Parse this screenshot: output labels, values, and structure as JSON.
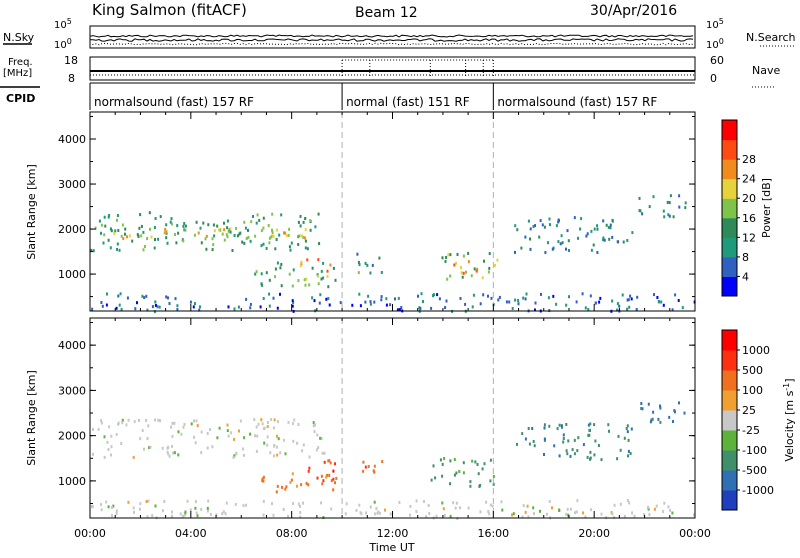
{
  "header": {
    "station": "King Salmon (fitACF)",
    "beam": "Beam 12",
    "date": "30/Apr/2016"
  },
  "aux_panels": {
    "nsky_label": "N.Sky",
    "nsky_ticks": [
      "10^5",
      "10^0"
    ],
    "nsearch_label": "N.Search",
    "nsearch_ticks": [
      "10^5",
      "10^0"
    ],
    "freq_label": [
      "Freq.",
      "[MHz]"
    ],
    "freq_ticks": [
      "18",
      "8"
    ],
    "nave_label": "Nave",
    "nave_ticks": [
      "60",
      "0"
    ],
    "cpid_label": "CPID",
    "cpid_segments": [
      {
        "label": "normalsound (fast) 157 RF",
        "start_h": 0,
        "end_h": 10
      },
      {
        "label": "normal (fast) 151 RF",
        "start_h": 10,
        "end_h": 16
      },
      {
        "label": "normalsound (fast) 157 RF",
        "start_h": 16,
        "end_h": 24
      }
    ]
  },
  "chart_data": [
    {
      "type": "heatmap",
      "quantity": "power",
      "xlabel": "Time UT",
      "ylabel": "Slant Range [km]",
      "xlim": [
        0,
        24
      ],
      "ylim": [
        180,
        4600
      ],
      "yticks": [
        1000,
        2000,
        3000,
        4000
      ],
      "colorbar": {
        "label": "Power [dB]",
        "ticks": [
          "4",
          "8",
          "12",
          "16",
          "20",
          "24",
          "28"
        ],
        "range": [
          0,
          30
        ],
        "colors": [
          "#0000ff",
          "#3060c0",
          "#1f9a7a",
          "#2e8b57",
          "#7fc44a",
          "#e6d23a",
          "#f08c1e",
          "#ff4a14",
          "#ff0000"
        ]
      },
      "echo_regions": [
        {
          "t0": 0.0,
          "t1": 9.3,
          "r0": 1550,
          "r1": 2400,
          "power_db": 11,
          "note": "broad band rising to ~2150 km"
        },
        {
          "t0": 0.5,
          "t1": 9.0,
          "r0": 1750,
          "r1": 2050,
          "power_db": 18,
          "note": "core of band"
        },
        {
          "t0": 6.5,
          "t1": 9.8,
          "r0": 750,
          "r1": 1300,
          "power_db": 12
        },
        {
          "t0": 8.3,
          "t1": 9.6,
          "r0": 900,
          "r1": 1400,
          "power_db": 22
        },
        {
          "t0": 10.4,
          "t1": 11.6,
          "r0": 1050,
          "r1": 1550,
          "power_db": 10
        },
        {
          "t0": 13.8,
          "t1": 16.2,
          "r0": 900,
          "r1": 1500,
          "power_db": 14
        },
        {
          "t0": 14.3,
          "t1": 15.3,
          "r0": 1050,
          "r1": 1350,
          "power_db": 22
        },
        {
          "t0": 16.8,
          "t1": 21.5,
          "r0": 1500,
          "r1": 2300,
          "power_db": 8
        },
        {
          "t0": 21.5,
          "t1": 23.6,
          "r0": 2300,
          "r1": 2800,
          "power_db": 9
        },
        {
          "t0": 0.0,
          "t1": 24.0,
          "r0": 200,
          "r1": 600,
          "power_db": 6,
          "note": "near-range ground clutter"
        }
      ]
    },
    {
      "type": "heatmap",
      "quantity": "velocity",
      "xlabel": "Time UT",
      "ylabel": "Slant Range [km]",
      "xlim": [
        0,
        24
      ],
      "ylim": [
        180,
        4600
      ],
      "yticks": [
        1000,
        2000,
        3000,
        4000
      ],
      "xticks": [
        "00:00",
        "04:00",
        "08:00",
        "12:00",
        "16:00",
        "20:00",
        "00:00"
      ],
      "colorbar": {
        "label": "Velocity [m s^-1]",
        "ticks": [
          "1000",
          "500",
          "100",
          "25",
          "-25",
          "-100",
          "-500",
          "-1000"
        ],
        "colors": [
          "#1f3fbf",
          "#2f6fb4",
          "#3f8f6a",
          "#5cb23a",
          "#c8c8c8",
          "#f0a030",
          "#f07020",
          "#ff3010",
          "#ff0000"
        ]
      },
      "echo_regions": [
        {
          "t0": 0.0,
          "t1": 9.3,
          "r0": 1550,
          "r1": 2400,
          "velocity": 0,
          "note": "ground scatter (grey)"
        },
        {
          "t0": 6.5,
          "t1": 9.8,
          "r0": 750,
          "r1": 1200,
          "velocity": -150
        },
        {
          "t0": 8.5,
          "t1": 9.8,
          "r0": 1000,
          "r1": 1500,
          "velocity": -700
        },
        {
          "t0": 10.5,
          "t1": 11.6,
          "r0": 1050,
          "r1": 1500,
          "velocity": -400
        },
        {
          "t0": 13.5,
          "t1": 16.2,
          "r0": 900,
          "r1": 1550,
          "velocity": 150
        },
        {
          "t0": 16.8,
          "t1": 21.5,
          "r0": 1500,
          "r1": 2300,
          "velocity": 400
        },
        {
          "t0": 21.5,
          "t1": 23.6,
          "r0": 2300,
          "r1": 2800,
          "velocity": 600
        },
        {
          "t0": 0.0,
          "t1": 24.0,
          "r0": 200,
          "r1": 600,
          "velocity": 0,
          "note": "near-range clutter"
        }
      ]
    }
  ],
  "colors": {
    "axes": "#000000",
    "dashed_markers": "#b0b0b0"
  }
}
